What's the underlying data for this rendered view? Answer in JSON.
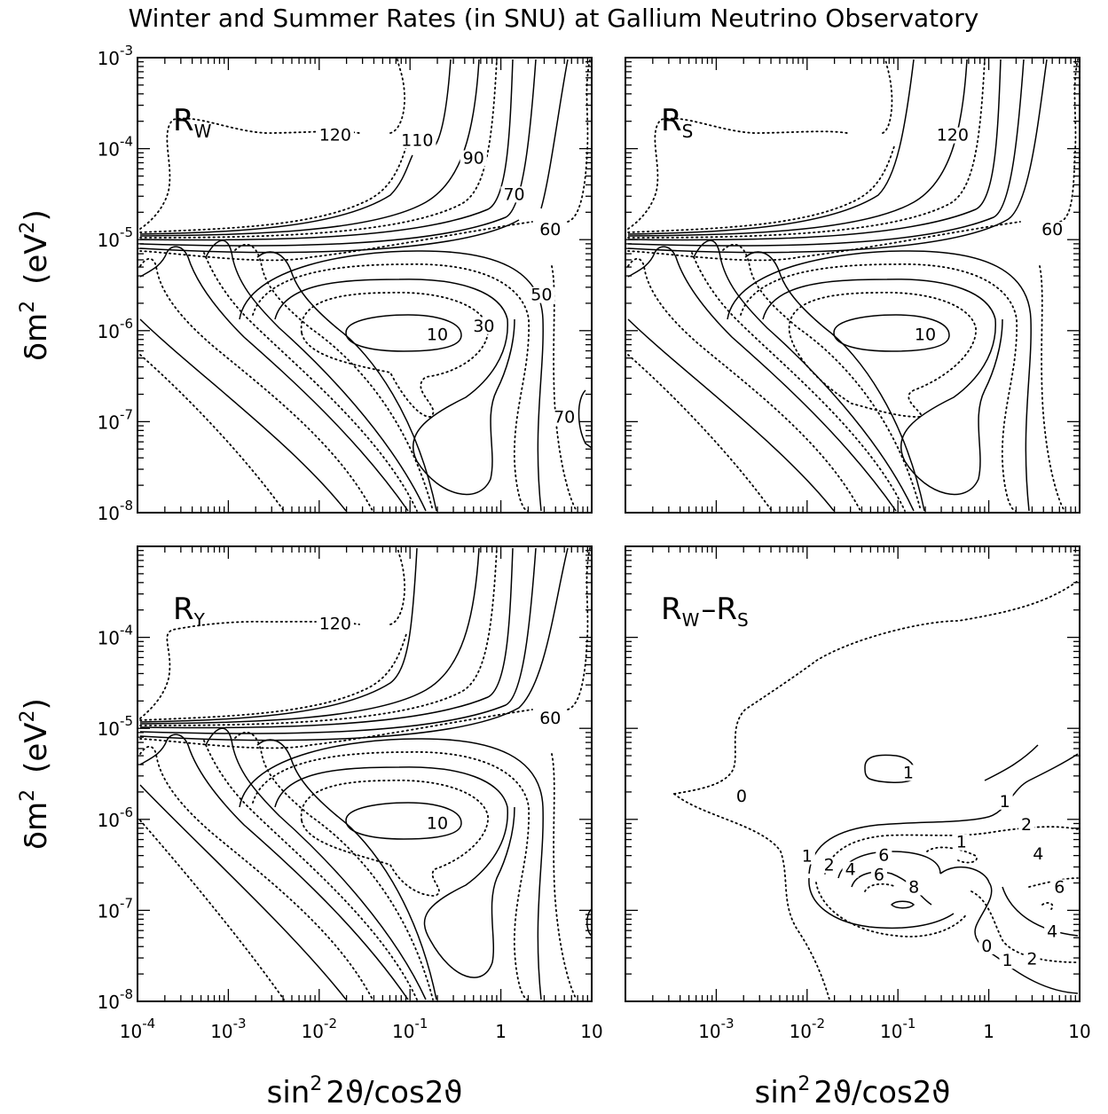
{
  "title": "Winter and Summer Rates (in SNU) at  Gallium Neutrino Observatory",
  "chart_data": [
    {
      "type": "contour",
      "panel": "R_W",
      "label_main": "R",
      "label_sub": "W",
      "xscale": "log",
      "yscale": "log",
      "xlim": [
        0.0001,
        10
      ],
      "ylim": [
        1e-08,
        0.001
      ],
      "contour_labels": [
        {
          "value": "120",
          "x": 0.015,
          "y": 0.000125,
          "style": "dotted"
        },
        {
          "value": "110",
          "x": 0.12,
          "y": 0.00011,
          "style": "solid"
        },
        {
          "value": "90",
          "x": 0.5,
          "y": 7e-05,
          "style": "dotted"
        },
        {
          "value": "70",
          "x": 1.4,
          "y": 2.8e-05,
          "style": "solid"
        },
        {
          "value": "60",
          "x": 3.5,
          "y": 1.15e-05,
          "style": "dotted"
        },
        {
          "value": "50",
          "x": 2.8,
          "y": 2.2e-06,
          "style": "solid"
        },
        {
          "value": "30",
          "x": 0.65,
          "y": 1e-06,
          "style": "dotted"
        },
        {
          "value": "10",
          "x": 0.2,
          "y": 8e-07,
          "style": "solid"
        },
        {
          "value": "70",
          "x": 5,
          "y": 1e-07,
          "style": "dotted"
        }
      ]
    },
    {
      "type": "contour",
      "panel": "R_S",
      "label_main": "R",
      "label_sub": "S",
      "xscale": "log",
      "yscale": "log",
      "xlim": [
        0.0001,
        10
      ],
      "ylim": [
        1e-08,
        0.001
      ],
      "contour_labels": [
        {
          "value": "120",
          "x": 0.4,
          "y": 0.000125,
          "style": "dotted"
        },
        {
          "value": "60",
          "x": 5,
          "y": 1.15e-05,
          "style": "dotted"
        },
        {
          "value": "10",
          "x": 0.2,
          "y": 8e-07,
          "style": "solid"
        }
      ]
    },
    {
      "type": "contour",
      "panel": "R_Y",
      "label_main": "R",
      "label_sub": "Y",
      "xscale": "log",
      "yscale": "log",
      "xlim": [
        0.0001,
        10
      ],
      "ylim": [
        1e-08,
        0.001
      ],
      "contour_labels": [
        {
          "value": "120",
          "x": 0.015,
          "y": 0.000125,
          "style": "dotted"
        },
        {
          "value": "60",
          "x": 3.5,
          "y": 1.15e-05,
          "style": "dotted"
        },
        {
          "value": "10",
          "x": 0.2,
          "y": 8e-07,
          "style": "solid"
        }
      ]
    },
    {
      "type": "contour",
      "panel": "R_W - R_S",
      "label_main": "R",
      "label_sub": "W",
      "label_main2": "R",
      "label_sub2": "S",
      "xscale": "log",
      "yscale": "log",
      "xlim": [
        0.0001,
        10
      ],
      "ylim": [
        1e-08,
        0.001
      ],
      "contour_labels": [
        {
          "value": "0",
          "x": 0.0019,
          "y": 1.6e-06,
          "style": "dotted"
        },
        {
          "value": "1",
          "x": 0.13,
          "y": 2.9e-06,
          "style": "solid"
        },
        {
          "value": "1",
          "x": 1.5,
          "y": 1.4e-06,
          "style": "solid"
        },
        {
          "value": "2",
          "x": 2.6,
          "y": 7.8e-07,
          "style": "dotted"
        },
        {
          "value": "1",
          "x": 0.5,
          "y": 5e-07,
          "style": "solid"
        },
        {
          "value": "4",
          "x": 3.5,
          "y": 3.7e-07,
          "style": "solid"
        },
        {
          "value": "6",
          "x": 0.07,
          "y": 3.6e-07,
          "style": "solid"
        },
        {
          "value": "1",
          "x": 0.01,
          "y": 3.5e-07,
          "style": "solid"
        },
        {
          "value": "2",
          "x": 0.0175,
          "y": 2.8e-07,
          "style": "dotted"
        },
        {
          "value": "4",
          "x": 0.03,
          "y": 2.5e-07,
          "style": "solid"
        },
        {
          "value": "6",
          "x": 0.062,
          "y": 2.2e-07,
          "style": "dotted"
        },
        {
          "value": "8",
          "x": 0.15,
          "y": 1.6e-07,
          "style": "solid"
        },
        {
          "value": "6",
          "x": 6,
          "y": 1.6e-07,
          "style": "dotted"
        },
        {
          "value": "4",
          "x": 5,
          "y": 5.2e-08,
          "style": "solid"
        },
        {
          "value": "0",
          "x": 0.95,
          "y": 3.6e-08,
          "style": "dotted"
        },
        {
          "value": "2",
          "x": 3,
          "y": 2.6e-08,
          "style": "dotted"
        },
        {
          "value": "1",
          "x": 1.6,
          "y": 2.5e-08,
          "style": "solid"
        }
      ]
    }
  ],
  "axes": {
    "ytitle_main": "δm",
    "ytitle_sup": "2",
    "ytitle_unit": "(eV",
    "ytitle_unit_sup": "2",
    "ytitle_close": ")",
    "xtitle_sin": "sin",
    "xtitle_sup": "2",
    "xtitle_rest": "2ϑ/cos2ϑ",
    "x_ticks": [
      {
        "base": "10",
        "exp": "-4",
        "value": 0.0001
      },
      {
        "base": "10",
        "exp": "-3",
        "value": 0.001
      },
      {
        "base": "10",
        "exp": "-2",
        "value": 0.01
      },
      {
        "base": "10",
        "exp": "-1",
        "value": 0.1
      },
      {
        "base": "1",
        "exp": "",
        "value": 1
      },
      {
        "base": "10",
        "exp": "",
        "value": 10
      }
    ],
    "y_ticks_top": [
      {
        "base": "10",
        "exp": "-3",
        "value": 0.001
      },
      {
        "base": "10",
        "exp": "-4",
        "value": 0.0001
      },
      {
        "base": "10",
        "exp": "-5",
        "value": 1e-05
      },
      {
        "base": "10",
        "exp": "-6",
        "value": 1e-06
      },
      {
        "base": "10",
        "exp": "-7",
        "value": 1e-07
      },
      {
        "base": "10",
        "exp": "-8",
        "value": 1e-08
      }
    ],
    "y_ticks_bottom": [
      {
        "base": "10",
        "exp": "-4",
        "value": 0.0001
      },
      {
        "base": "10",
        "exp": "-5",
        "value": 1e-05
      },
      {
        "base": "10",
        "exp": "-6",
        "value": 1e-06
      },
      {
        "base": "10",
        "exp": "-7",
        "value": 1e-07
      },
      {
        "base": "10",
        "exp": "-8",
        "value": 1e-08
      }
    ],
    "x_ticks_right": [
      {
        "base": "10",
        "exp": "-3",
        "value": 0.001
      },
      {
        "base": "10",
        "exp": "-2",
        "value": 0.01
      },
      {
        "base": "10",
        "exp": "-1",
        "value": 0.1
      },
      {
        "base": "1",
        "exp": "",
        "value": 1
      },
      {
        "base": "10",
        "exp": "",
        "value": 10
      }
    ]
  }
}
